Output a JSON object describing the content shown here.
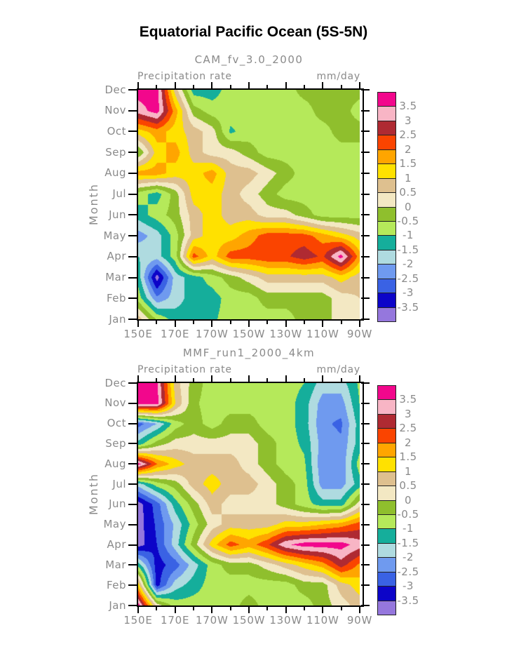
{
  "figure": {
    "title": "Equatorial Pacific Ocean (5S-5N)"
  },
  "style": {
    "text_gray": "#8a8a8a",
    "axis_color": "#000000",
    "title_color": "#000000"
  },
  "axis": {
    "months_bottom_to_top": [
      "Jan",
      "Feb",
      "Mar",
      "Apr",
      "May",
      "Jun",
      "Jul",
      "Aug",
      "Sep",
      "Oct",
      "Nov",
      "Dec"
    ],
    "x_tick_labels": [
      "150E",
      "170E",
      "170W",
      "150W",
      "130W",
      "110W",
      "90W"
    ],
    "y_axis_label": "Month"
  },
  "colorbar": {
    "tick_labels_top_to_bottom": [
      "3.5",
      "3",
      "2.5",
      "2",
      "1.5",
      "1",
      "0.5",
      "0",
      "-0.5",
      "-1",
      "-1.5",
      "-2",
      "-2.5",
      "-3",
      "-3.5"
    ],
    "swatch_colors_top_to_bottom": [
      "#F2078C",
      "#F8B5C5",
      "#AF2A32",
      "#FA4400",
      "#FFA500",
      "#FFE100",
      "#DEC08F",
      "#F3E8C3",
      "#8FBF2D",
      "#B5E95A",
      "#15AE9B",
      "#AFDBE0",
      "#6F9AEF",
      "#3A62E4",
      "#0C04C8",
      "#9577DD"
    ]
  },
  "chart_data": [
    {
      "type": "heatmap",
      "title": "CAM_fv_3.0_2000",
      "header_left": "Precipitation rate",
      "header_right": "mm/day",
      "ylabel": "Month",
      "xlabel_ticks": [
        "150E",
        "170E",
        "170W",
        "150W",
        "130W",
        "110W",
        "90W"
      ],
      "x_grid_longitudes": [
        "150E",
        "160E",
        "170E",
        "180",
        "170W",
        "160W",
        "150W",
        "140W",
        "130W",
        "120W",
        "110W",
        "100W",
        "90W"
      ],
      "y_grid_months": [
        "Jan",
        "Feb",
        "Mar",
        "Apr",
        "May",
        "Jun",
        "Jul",
        "Aug",
        "Sep",
        "Oct",
        "Nov",
        "Dec"
      ],
      "contour_levels": [
        -3.5,
        -3,
        -2.5,
        -2,
        -1.5,
        -1,
        -0.5,
        0,
        0.5,
        1,
        1.5,
        2,
        2.5,
        3,
        3.5
      ],
      "units": "mm/day",
      "values": [
        [
          0.75,
          -0.6,
          -1.25,
          -1.25,
          -1.1,
          -0.75,
          -0.75,
          -0.75,
          -0.75,
          -0.25,
          -0.25,
          0.25,
          0.25
        ],
        [
          -0.75,
          -2.4,
          -1.75,
          -1.25,
          -1.25,
          -0.75,
          -0.75,
          -0.25,
          -0.25,
          -0.25,
          -0.25,
          0.25,
          0.5
        ],
        [
          -1.25,
          -3.75,
          -1.75,
          -1.25,
          -0.75,
          -0.25,
          0.25,
          0.75,
          0.75,
          0.75,
          0.75,
          1.25,
          0.75
        ],
        [
          -1.5,
          -1.75,
          -0.75,
          2.25,
          1.25,
          2.25,
          2.25,
          2.4,
          2.4,
          2.8,
          2.4,
          3.75,
          1.75
        ],
        [
          -2.25,
          -1.75,
          -0.75,
          0.75,
          1.25,
          1.25,
          1.75,
          2.25,
          2.25,
          2.2,
          1.75,
          1.25,
          0.75
        ],
        [
          -1.25,
          -0.75,
          -0.25,
          0.75,
          1.25,
          0.75,
          0.75,
          0.25,
          0.25,
          -0.25,
          -0.75,
          -0.75,
          -0.75
        ],
        [
          -0.75,
          -1.25,
          -0.25,
          1.25,
          1.25,
          0.75,
          0.25,
          -0.25,
          -0.75,
          -0.75,
          -0.75,
          -0.75,
          -0.75
        ],
        [
          1.75,
          1.75,
          1.25,
          1.25,
          1.75,
          0.75,
          0.75,
          0.25,
          -0.25,
          -0.75,
          -0.75,
          -0.75,
          -0.75
        ],
        [
          -0.5,
          1.25,
          1.75,
          0.75,
          0.25,
          0.25,
          -0.25,
          -0.75,
          -0.75,
          -0.75,
          -0.75,
          -0.75,
          -0.75
        ],
        [
          1.25,
          1.75,
          1.25,
          0.75,
          0.25,
          -1.1,
          -0.75,
          -0.75,
          -0.75,
          -0.75,
          -0.75,
          -0.25,
          -0.25
        ],
        [
          3.25,
          3.75,
          1.75,
          -0.25,
          -0.75,
          -0.75,
          -0.75,
          -0.75,
          -0.75,
          -0.75,
          -0.25,
          -0.25,
          -0.75
        ],
        [
          3.75,
          3.75,
          0.75,
          -1.25,
          -1.25,
          -0.75,
          -0.75,
          -0.75,
          -0.75,
          -0.3,
          -0.25,
          -0.25,
          -0.3
        ]
      ]
    },
    {
      "type": "heatmap",
      "title": "MMF_run1_2000_4km",
      "header_left": "Precipitation rate",
      "header_right": "mm/day",
      "ylabel": "Month",
      "xlabel_ticks": [
        "150E",
        "170E",
        "170W",
        "150W",
        "130W",
        "110W",
        "90W"
      ],
      "x_grid_longitudes": [
        "150E",
        "160E",
        "170E",
        "180",
        "170W",
        "160W",
        "150W",
        "140W",
        "130W",
        "120W",
        "110W",
        "100W",
        "90W"
      ],
      "y_grid_months": [
        "Jan",
        "Feb",
        "Mar",
        "Apr",
        "May",
        "Jun",
        "Jul",
        "Aug",
        "Sep",
        "Oct",
        "Nov",
        "Dec"
      ],
      "contour_levels": [
        -3.5,
        -3,
        -2.5,
        -2,
        -1.5,
        -1,
        -0.5,
        0,
        0.5,
        1,
        1.5,
        2,
        2.5,
        3,
        3.5
      ],
      "units": "mm/day",
      "values": [
        [
          3.75,
          0.25,
          -0.75,
          -0.75,
          -0.75,
          -0.75,
          -0.25,
          -0.75,
          -0.75,
          -0.75,
          -0.25,
          0.25,
          0.75
        ],
        [
          1.25,
          -3.25,
          -1.75,
          -1.25,
          -0.75,
          -0.75,
          -0.75,
          -0.75,
          -0.75,
          -0.25,
          -0.25,
          0.75,
          1.25
        ],
        [
          -1.25,
          -3.25,
          -2.75,
          -1.75,
          -0.75,
          -0.25,
          -0.25,
          0.25,
          0.75,
          1.25,
          1.75,
          2.75,
          1.9
        ],
        [
          -3.75,
          -3.0,
          -1.75,
          -0.25,
          1.25,
          2.25,
          1.75,
          2.4,
          3.4,
          3.75,
          3.75,
          3.75,
          3.25
        ],
        [
          -3.75,
          -2.9,
          -1.9,
          -0.75,
          0.25,
          0.75,
          0.75,
          0.75,
          1.25,
          1.25,
          1.5,
          1.75,
          2.25
        ],
        [
          -3.75,
          -2.75,
          -1.25,
          -0.25,
          0.75,
          0.25,
          0.25,
          0.25,
          -0.25,
          -0.75,
          -1.25,
          -1.25,
          0.25
        ],
        [
          -1.75,
          -0.75,
          -0.25,
          0.75,
          1.25,
          0.75,
          0.75,
          0.25,
          -0.25,
          -0.75,
          -2.25,
          -2.25,
          -1.25
        ],
        [
          3.75,
          2.0,
          1.25,
          0.75,
          0.75,
          0.75,
          0.25,
          -0.25,
          -0.75,
          -0.9,
          -2.4,
          -2.4,
          -0.75
        ],
        [
          -1.25,
          -0.25,
          0.25,
          0.25,
          0.25,
          0.25,
          0.25,
          -0.25,
          -0.75,
          -1.1,
          -2.25,
          -2.4,
          -1.25
        ],
        [
          -2.75,
          -2.0,
          -0.75,
          -0.25,
          -0.75,
          -0.25,
          -0.25,
          -0.75,
          -0.75,
          -1.25,
          -2.4,
          -2.6,
          -1.25
        ],
        [
          3.75,
          3.75,
          1.0,
          -0.4,
          -0.75,
          -0.75,
          -0.75,
          -0.75,
          -0.75,
          -1.25,
          -2.25,
          -2.25,
          -1.0
        ],
        [
          3.75,
          3.6,
          0.75,
          -0.25,
          -0.75,
          -0.75,
          -0.75,
          -0.75,
          -0.75,
          -1.0,
          -1.75,
          -1.75,
          -0.9
        ]
      ]
    }
  ]
}
